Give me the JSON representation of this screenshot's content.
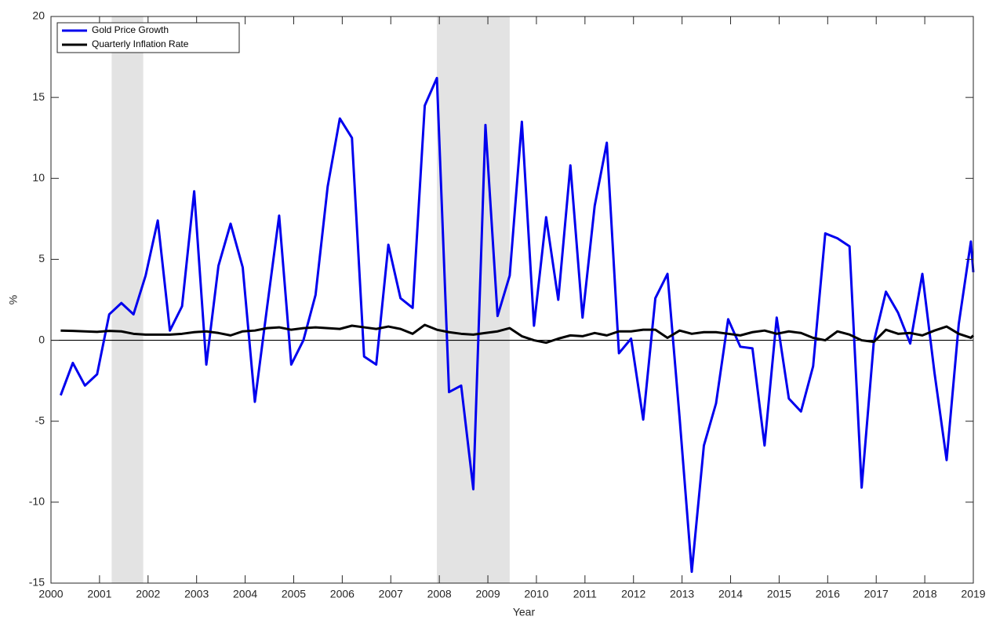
{
  "chart_data": {
    "type": "line",
    "x_label": "Year",
    "y_label": "%",
    "x": [
      2000.2,
      2000.45,
      2000.7,
      2000.95,
      2001.2,
      2001.45,
      2001.7,
      2001.95,
      2002.2,
      2002.45,
      2002.7,
      2002.95,
      2003.2,
      2003.45,
      2003.7,
      2003.95,
      2004.2,
      2004.45,
      2004.7,
      2004.95,
      2005.2,
      2005.45,
      2005.7,
      2005.95,
      2006.2,
      2006.45,
      2006.7,
      2006.95,
      2007.2,
      2007.45,
      2007.7,
      2007.95,
      2008.2,
      2008.45,
      2008.7,
      2008.95,
      2009.2,
      2009.45,
      2009.7,
      2009.95,
      2010.2,
      2010.45,
      2010.7,
      2010.95,
      2011.2,
      2011.45,
      2011.7,
      2011.95,
      2012.2,
      2012.45,
      2012.7,
      2012.95,
      2013.2,
      2013.45,
      2013.7,
      2013.95,
      2014.2,
      2014.45,
      2014.7,
      2014.95,
      2015.2,
      2015.45,
      2015.7,
      2015.95,
      2016.2,
      2016.45,
      2016.7,
      2016.95,
      2017.2,
      2017.45,
      2017.7,
      2017.95,
      2018.2,
      2018.45,
      2018.7,
      2018.95,
      2019
    ],
    "series": [
      {
        "name": "Gold Price Growth",
        "color": "#0000ee",
        "values": [
          -3.4,
          -1.4,
          -2.8,
          -2.1,
          1.6,
          2.3,
          1.6,
          4.0,
          7.4,
          0.6,
          2.1,
          9.2,
          -1.5,
          4.6,
          7.2,
          4.5,
          -3.8,
          2.0,
          7.7,
          -1.5,
          0.0,
          2.8,
          9.5,
          13.7,
          12.5,
          -1.0,
          -1.5,
          5.9,
          2.6,
          2.0,
          14.5,
          16.2,
          -3.2,
          -2.8,
          -9.2,
          13.3,
          1.5,
          4.0,
          13.5,
          0.9,
          7.6,
          2.5,
          10.8,
          1.4,
          8.3,
          12.2,
          -0.8,
          0.1,
          -4.9,
          2.6,
          4.1,
          -4.8,
          -14.3,
          -6.5,
          -3.9,
          1.3,
          -0.4,
          -0.5,
          -6.5,
          1.4,
          -3.6,
          -4.4,
          -1.6,
          6.6,
          6.3,
          5.8,
          -9.1,
          -0.1,
          3.0,
          1.7,
          -0.2,
          4.1,
          -2.0,
          -7.4,
          1.0,
          6.1,
          4.2
        ]
      },
      {
        "name": "Quarterly Inflation Rate",
        "color": "#000000",
        "values": [
          0.6,
          0.58,
          0.55,
          0.52,
          0.58,
          0.55,
          0.4,
          0.35,
          0.35,
          0.35,
          0.4,
          0.5,
          0.55,
          0.45,
          0.3,
          0.55,
          0.6,
          0.75,
          0.8,
          0.65,
          0.75,
          0.8,
          0.75,
          0.7,
          0.9,
          0.8,
          0.7,
          0.85,
          0.7,
          0.4,
          0.95,
          0.65,
          0.5,
          0.4,
          0.35,
          0.45,
          0.55,
          0.75,
          0.25,
          0.0,
          -0.15,
          0.1,
          0.3,
          0.25,
          0.45,
          0.3,
          0.55,
          0.55,
          0.65,
          0.65,
          0.15,
          0.6,
          0.4,
          0.5,
          0.5,
          0.4,
          0.3,
          0.5,
          0.6,
          0.4,
          0.55,
          0.45,
          0.15,
          0.0,
          0.55,
          0.35,
          0.0,
          -0.1,
          0.65,
          0.4,
          0.45,
          0.3,
          0.6,
          0.85,
          0.4,
          0.15,
          0.3
        ]
      }
    ],
    "shaded_periods": [
      [
        2001.25,
        2001.9
      ],
      [
        2007.95,
        2009.45
      ]
    ],
    "shade_color": "#e3e3e3",
    "xlim": [
      2000,
      2019
    ],
    "ylim": [
      -15,
      20
    ],
    "xticks": [
      2000,
      2001,
      2002,
      2003,
      2004,
      2005,
      2006,
      2007,
      2008,
      2009,
      2010,
      2011,
      2012,
      2013,
      2014,
      2015,
      2016,
      2017,
      2018,
      2019
    ],
    "yticks": [
      -15,
      -10,
      -5,
      0,
      5,
      10,
      15,
      20
    ],
    "legend": "upper left",
    "zero_line": true
  }
}
